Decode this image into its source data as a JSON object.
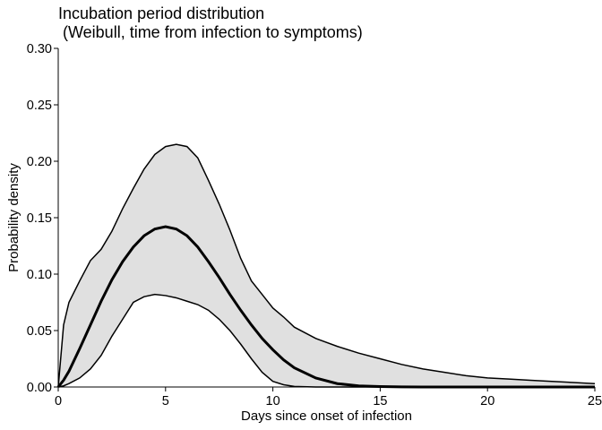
{
  "chart_data": {
    "type": "area",
    "title_line1": "Incubation period distribution",
    "title_line2": " (Weibull, time from infection to symptoms)",
    "xlabel": "Days since onset of infection",
    "ylabel": "Probability density",
    "xlim": [
      0,
      25
    ],
    "ylim": [
      0,
      0.3
    ],
    "x_ticks": [
      0,
      5,
      10,
      15,
      20,
      25
    ],
    "x_tick_labels": [
      "0",
      "5",
      "10",
      "15",
      "20",
      "25"
    ],
    "y_ticks": [
      0,
      0.05,
      0.1,
      0.15,
      0.2,
      0.25,
      0.3
    ],
    "y_tick_labels": [
      "0.00",
      "0.05",
      "0.10",
      "0.15",
      "0.20",
      "0.25",
      "0.30"
    ],
    "grid": false,
    "legend": "none",
    "colors": {
      "band_fill": "#e0e0e0",
      "line": "#000000"
    },
    "x": [
      0,
      0.25,
      0.5,
      1,
      1.5,
      2,
      2.5,
      3,
      3.5,
      4,
      4.5,
      5,
      5.5,
      6,
      6.5,
      7,
      7.5,
      8,
      8.5,
      9,
      9.5,
      10,
      10.5,
      11,
      12,
      13,
      14,
      15,
      16,
      17,
      18,
      19,
      20,
      21,
      22,
      23,
      24,
      25
    ],
    "median": [
      0,
      0.006,
      0.014,
      0.034,
      0.055,
      0.076,
      0.095,
      0.111,
      0.124,
      0.134,
      0.14,
      0.142,
      0.14,
      0.134,
      0.124,
      0.111,
      0.097,
      0.082,
      0.068,
      0.055,
      0.043,
      0.033,
      0.024,
      0.017,
      0.008,
      0.003,
      0.001,
      0.0004,
      0.0001,
      0,
      0,
      0,
      0,
      0,
      0,
      0,
      0,
      0
    ],
    "lower": [
      0,
      0.001,
      0.003,
      0.008,
      0.016,
      0.028,
      0.045,
      0.06,
      0.075,
      0.08,
      0.082,
      0.081,
      0.079,
      0.076,
      0.073,
      0.068,
      0.06,
      0.05,
      0.038,
      0.025,
      0.013,
      0.005,
      0.002,
      0.0005,
      0,
      0,
      0,
      0,
      0,
      0,
      0,
      0,
      0,
      0,
      0,
      0,
      0,
      0
    ],
    "upper": [
      0,
      0.055,
      0.075,
      0.094,
      0.112,
      0.122,
      0.138,
      0.158,
      0.176,
      0.193,
      0.206,
      0.213,
      0.215,
      0.213,
      0.203,
      0.183,
      0.162,
      0.139,
      0.114,
      0.094,
      0.082,
      0.07,
      0.062,
      0.053,
      0.043,
      0.036,
      0.03,
      0.025,
      0.02,
      0.016,
      0.013,
      0.01,
      0.008,
      0.007,
      0.006,
      0.005,
      0.004,
      0.003
    ]
  }
}
